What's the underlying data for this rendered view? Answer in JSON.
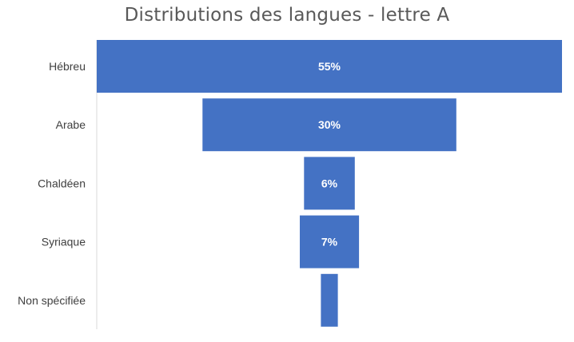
{
  "chart_data": {
    "type": "bar",
    "subtype": "funnel",
    "title": "Distributions des langues - lettre A",
    "categories": [
      "Hébreu",
      "Arabe",
      "Chaldéen",
      "Syriaque",
      "Non spécifiée"
    ],
    "values": [
      55,
      30,
      6,
      7,
      2
    ],
    "data_labels": [
      "55%",
      "30%",
      "6%",
      "7%",
      ""
    ],
    "value_unit": "%",
    "bar_color": "#4472C4",
    "data_label_color": "#ffffff",
    "category_axis_color": "#D9D9D9",
    "grid": false,
    "legend": "none"
  }
}
